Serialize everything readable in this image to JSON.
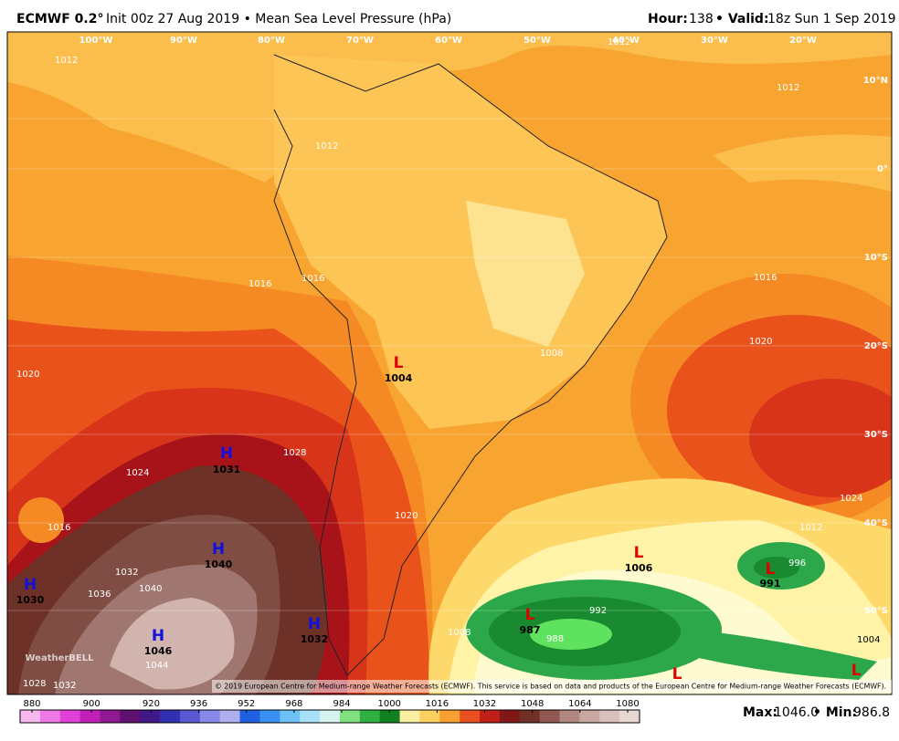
{
  "header": {
    "model": "ECMWF 0.2°",
    "run": "Init 00z 27 Aug 2019 • Mean Sea Level Pressure (hPa)",
    "hour_label": "Hour:",
    "hour": 138,
    "valid_label": "• Valid:",
    "valid": "18z Sun 1 Sep 2019"
  },
  "lon_labels": [
    "100°W",
    "90°W",
    "80°W",
    "70°W",
    "60°W",
    "50°W",
    "40°W",
    "30°W",
    "20°W"
  ],
  "lat_labels": [
    "10°N",
    "0°",
    "10°S",
    "20°S",
    "30°S",
    "40°S",
    "50°S"
  ],
  "centers": [
    {
      "symbol": "H",
      "value": 1031
    },
    {
      "symbol": "H",
      "value": 1040
    },
    {
      "symbol": "H",
      "value": 1030
    },
    {
      "symbol": "H",
      "value": 1046
    },
    {
      "symbol": "H",
      "value": 1032
    },
    {
      "symbol": "L",
      "value": 1004
    },
    {
      "symbol": "L",
      "value": 1006
    },
    {
      "symbol": "L",
      "value": 991
    },
    {
      "symbol": "L",
      "value": 987
    },
    {
      "symbol": "L"
    },
    {
      "symbol": "L"
    }
  ],
  "contour_labels": [
    "1012",
    "1012",
    "1012",
    "1012",
    "1016",
    "1016",
    "1016",
    "1016",
    "1020",
    "1020",
    "1020",
    "1024",
    "1024",
    "1028",
    "1032",
    "1036",
    "1040",
    "1044",
    "1032",
    "1028",
    "1008",
    "1008",
    "992",
    "988",
    "996",
    "1004",
    "1012"
  ],
  "colorbar": {
    "ticks": [
      880,
      900,
      920,
      936,
      952,
      968,
      984,
      1000,
      1016,
      1032,
      1048,
      1064,
      1080
    ],
    "colors": [
      "#f7b8f0",
      "#ee78e6",
      "#e040d8",
      "#c020b8",
      "#901890",
      "#601070",
      "#401888",
      "#3030b0",
      "#5858d0",
      "#8888e8",
      "#b0b0f0",
      "#2060e0",
      "#3890f0",
      "#70c0f8",
      "#a8e0f8",
      "#d8f4f0",
      "#80e080",
      "#30b040",
      "#108020",
      "#f8f0a0",
      "#fcd060",
      "#f8a030",
      "#e85020",
      "#c02018",
      "#801818",
      "#703028",
      "#905850",
      "#b08880",
      "#c8a8a0",
      "#d8c0bc",
      "#e8d8d4"
    ]
  },
  "copyright": "© 2019 European Centre for Medium-range Weather Forecasts (ECMWF). This service is based on data and products of the European Centre for Medium-range Weather Forecasts (ECMWF).",
  "logo": "WeatherBELL",
  "footer": {
    "max_label": "Max:",
    "max": "1046.0",
    "min_label": "• Min:",
    "min": "986.8"
  }
}
